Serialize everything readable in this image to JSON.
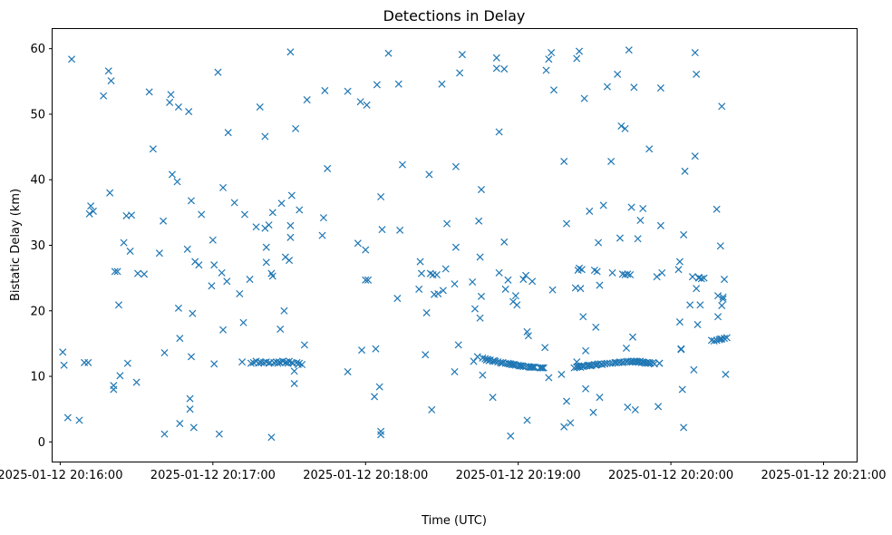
{
  "chart_data": {
    "type": "scatter",
    "title": "Detections in Delay",
    "xlabel": "Time (UTC)",
    "ylabel": "Bistatic Delay (km)",
    "marker": "x",
    "color": "#1f77b4",
    "grid": false,
    "x_unit": "seconds after 2025-01-12 20:16:00",
    "xlim": [
      -3,
      313
    ],
    "ylim": [
      -3,
      63
    ],
    "x_ticks": [
      {
        "value": 0,
        "label": "2025-01-12 20:16:00"
      },
      {
        "value": 60,
        "label": "2025-01-12 20:17:00"
      },
      {
        "value": 120,
        "label": "2025-01-12 20:18:00"
      },
      {
        "value": 180,
        "label": "2025-01-12 20:19:00"
      },
      {
        "value": 240,
        "label": "2025-01-12 20:20:00"
      },
      {
        "value": 300,
        "label": "2025-01-12 20:21:00"
      }
    ],
    "y_ticks": [
      {
        "value": 0,
        "label": "0"
      },
      {
        "value": 10,
        "label": "10"
      },
      {
        "value": 20,
        "label": "20"
      },
      {
        "value": 30,
        "label": "30"
      },
      {
        "value": 40,
        "label": "40"
      },
      {
        "value": 50,
        "label": "50"
      },
      {
        "value": 60,
        "label": "60"
      }
    ],
    "points": [
      [
        1,
        13.7
      ],
      [
        1.5,
        11.7
      ],
      [
        3,
        3.7
      ],
      [
        4.5,
        58.4
      ],
      [
        7.5,
        3.3
      ],
      [
        9.5,
        12.1
      ],
      [
        11,
        12.1
      ],
      [
        11.5,
        34.8
      ],
      [
        12,
        36
      ],
      [
        13,
        35.2
      ],
      [
        17,
        52.8
      ],
      [
        19,
        56.6
      ],
      [
        19.5,
        38
      ],
      [
        20,
        55.1
      ],
      [
        21,
        8.6
      ],
      [
        21,
        8
      ],
      [
        21.5,
        26
      ],
      [
        22.5,
        26
      ],
      [
        23,
        20.9
      ],
      [
        23.5,
        10.1
      ],
      [
        25,
        30.4
      ],
      [
        26,
        34.5
      ],
      [
        26.5,
        12
      ],
      [
        27.5,
        29.1
      ],
      [
        28,
        34.6
      ],
      [
        30,
        9.1
      ],
      [
        30.5,
        25.7
      ],
      [
        33,
        25.6
      ],
      [
        35,
        53.4
      ],
      [
        36.5,
        44.7
      ],
      [
        39,
        28.8
      ],
      [
        40.5,
        33.7
      ],
      [
        41,
        13.6
      ],
      [
        41,
        1.2
      ],
      [
        43,
        51.8
      ],
      [
        43.5,
        53
      ],
      [
        44,
        40.8
      ],
      [
        46,
        39.7
      ],
      [
        46.5,
        51.1
      ],
      [
        46.5,
        20.4
      ],
      [
        47,
        15.8
      ],
      [
        47,
        2.8
      ],
      [
        50,
        29.4
      ],
      [
        50.5,
        50.4
      ],
      [
        51,
        6.6
      ],
      [
        51,
        5
      ],
      [
        51.5,
        36.8
      ],
      [
        51.5,
        13
      ],
      [
        52,
        19.6
      ],
      [
        52.5,
        2.2
      ],
      [
        53,
        27.5
      ],
      [
        54.5,
        27
      ],
      [
        55.5,
        34.7
      ],
      [
        59.5,
        23.8
      ],
      [
        60,
        30.8
      ],
      [
        60.5,
        27
      ],
      [
        60.5,
        11.9
      ],
      [
        62,
        56.4
      ],
      [
        62.5,
        1.2
      ],
      [
        63.5,
        25.8
      ],
      [
        64,
        17.1
      ],
      [
        64,
        38.8
      ],
      [
        65.5,
        24.5
      ],
      [
        66,
        47.2
      ],
      [
        68.5,
        36.5
      ],
      [
        70.5,
        22.6
      ],
      [
        71.5,
        12.2
      ],
      [
        72,
        18.2
      ],
      [
        72.5,
        34.7
      ],
      [
        74.5,
        24.8
      ],
      [
        75,
        12
      ],
      [
        76,
        12.1
      ],
      [
        77,
        32.8
      ],
      [
        77,
        12.3
      ],
      [
        78,
        12
      ],
      [
        78.5,
        12.2
      ],
      [
        78.5,
        51.1
      ],
      [
        79,
        12.1
      ],
      [
        80,
        12.1
      ],
      [
        80.5,
        32.6
      ],
      [
        80.5,
        46.6
      ],
      [
        81,
        27.4
      ],
      [
        81,
        29.7
      ],
      [
        81,
        12.2
      ],
      [
        82,
        33.1
      ],
      [
        82,
        12
      ],
      [
        82.5,
        12.1
      ],
      [
        83,
        25.7
      ],
      [
        83,
        0.7
      ],
      [
        83.5,
        25.3
      ],
      [
        83.5,
        35
      ],
      [
        84,
        12.1
      ],
      [
        85,
        12.2
      ],
      [
        85.5,
        12
      ],
      [
        86,
        12.2
      ],
      [
        86.5,
        17.2
      ],
      [
        86.5,
        12.1
      ],
      [
        87,
        36.4
      ],
      [
        87.5,
        12.3
      ],
      [
        88,
        20
      ],
      [
        88.5,
        28.2
      ],
      [
        88.5,
        12.1
      ],
      [
        89,
        12.2
      ],
      [
        89.5,
        12
      ],
      [
        90,
        27.7
      ],
      [
        90,
        12.3
      ],
      [
        90.5,
        31.2
      ],
      [
        90.5,
        33
      ],
      [
        90.5,
        59.5
      ],
      [
        91,
        37.6
      ],
      [
        91,
        12.1
      ],
      [
        91.5,
        12
      ],
      [
        92,
        10.8
      ],
      [
        92,
        8.9
      ],
      [
        92.5,
        47.8
      ],
      [
        93,
        12.1
      ],
      [
        93.5,
        11.8
      ],
      [
        94,
        12
      ],
      [
        94,
        35.4
      ],
      [
        95,
        11.8
      ],
      [
        96,
        14.8
      ],
      [
        97,
        52.2
      ],
      [
        103,
        31.5
      ],
      [
        103.5,
        34.2
      ],
      [
        104,
        53.6
      ],
      [
        105,
        41.7
      ],
      [
        113,
        10.7
      ],
      [
        113,
        53.5
      ],
      [
        117,
        30.3
      ],
      [
        118,
        51.9
      ],
      [
        118.5,
        14
      ],
      [
        120,
        24.7
      ],
      [
        120,
        29.3
      ],
      [
        120.5,
        51.4
      ],
      [
        121,
        24.7
      ],
      [
        123.5,
        6.9
      ],
      [
        124,
        14.2
      ],
      [
        124.5,
        54.5
      ],
      [
        125.5,
        8.4
      ],
      [
        126,
        1.6
      ],
      [
        126,
        1.1
      ],
      [
        126,
        37.4
      ],
      [
        126.5,
        32.4
      ],
      [
        129,
        59.3
      ],
      [
        132.5,
        21.9
      ],
      [
        133,
        54.6
      ],
      [
        133.5,
        32.3
      ],
      [
        134.5,
        42.3
      ],
      [
        141,
        23.3
      ],
      [
        141.5,
        27.5
      ],
      [
        142,
        25.7
      ],
      [
        143.5,
        13.3
      ],
      [
        144,
        19.7
      ],
      [
        145,
        40.8
      ],
      [
        145.5,
        25.7
      ],
      [
        146,
        4.9
      ],
      [
        146.5,
        25.5
      ],
      [
        147,
        22.5
      ],
      [
        148,
        25.5
      ],
      [
        148.5,
        22.6
      ],
      [
        150,
        54.6
      ],
      [
        150.5,
        23.1
      ],
      [
        151.5,
        26.4
      ],
      [
        152,
        33.3
      ],
      [
        155,
        24.1
      ],
      [
        155,
        10.7
      ],
      [
        155.5,
        42
      ],
      [
        155.5,
        29.7
      ],
      [
        156.5,
        14.8
      ],
      [
        157,
        56.3
      ],
      [
        158,
        59.1
      ],
      [
        162,
        24.4
      ],
      [
        162.5,
        12.3
      ],
      [
        163,
        20.3
      ],
      [
        164,
        13
      ],
      [
        164.5,
        33.7
      ],
      [
        165,
        18.9
      ],
      [
        165,
        28.2
      ],
      [
        165.5,
        22.2
      ],
      [
        165.5,
        38.5
      ],
      [
        166,
        10.2
      ],
      [
        166,
        12.8
      ],
      [
        167,
        12.7
      ],
      [
        167.5,
        12.5
      ],
      [
        168,
        12.6
      ],
      [
        168.5,
        12.4
      ],
      [
        169,
        12.5
      ],
      [
        170,
        6.8
      ],
      [
        170,
        12.3
      ],
      [
        170.5,
        12.4
      ],
      [
        171,
        12.3
      ],
      [
        171.5,
        57
      ],
      [
        171.5,
        58.6
      ],
      [
        172,
        12.2
      ],
      [
        172.5,
        25.8
      ],
      [
        172.5,
        47.3
      ],
      [
        173,
        12.1
      ],
      [
        173.5,
        12
      ],
      [
        174,
        12.1
      ],
      [
        174.5,
        56.9
      ],
      [
        174.5,
        30.5
      ],
      [
        175,
        12
      ],
      [
        175,
        23.3
      ],
      [
        176,
        12
      ],
      [
        176,
        24.7
      ],
      [
        176.5,
        11.9
      ],
      [
        177,
        0.9
      ],
      [
        177,
        11.9
      ],
      [
        177.5,
        11.8
      ],
      [
        178,
        21.4
      ],
      [
        178,
        11.8
      ],
      [
        178.5,
        11.8
      ],
      [
        179,
        22.3
      ],
      [
        179,
        11.7
      ],
      [
        179.5,
        20.9
      ],
      [
        180,
        11.7
      ],
      [
        180.5,
        11.6
      ],
      [
        181,
        11.6
      ],
      [
        181.5,
        11.6
      ],
      [
        182,
        24.8
      ],
      [
        182,
        11.5
      ],
      [
        183,
        25.4
      ],
      [
        183,
        11.5
      ],
      [
        183.5,
        3.3
      ],
      [
        183.5,
        16.8
      ],
      [
        184,
        16.2
      ],
      [
        184,
        11.5
      ],
      [
        184.5,
        11.4
      ],
      [
        185,
        11.4
      ],
      [
        185.5,
        11.4
      ],
      [
        185.5,
        24.5
      ],
      [
        186,
        11.4
      ],
      [
        186.5,
        11.4
      ],
      [
        188.5,
        11.3
      ],
      [
        189,
        11.3
      ],
      [
        189.5,
        11.3
      ],
      [
        190,
        11.3
      ],
      [
        190.5,
        14.4
      ],
      [
        191,
        56.7
      ],
      [
        192,
        58.4
      ],
      [
        192,
        9.8
      ],
      [
        193,
        59.4
      ],
      [
        193.5,
        23.2
      ],
      [
        194,
        53.7
      ],
      [
        197,
        10.3
      ],
      [
        198,
        42.8
      ],
      [
        198,
        2.3
      ],
      [
        199,
        33.3
      ],
      [
        199,
        6.2
      ],
      [
        200.5,
        2.9
      ],
      [
        202,
        11.3
      ],
      [
        202.5,
        23.5
      ],
      [
        203,
        12.2
      ],
      [
        203,
        11.4
      ],
      [
        203,
        58.5
      ],
      [
        203.5,
        26.2
      ],
      [
        203.5,
        11.5
      ],
      [
        204,
        59.6
      ],
      [
        204,
        26.5
      ],
      [
        204,
        11.5
      ],
      [
        204.5,
        23.4
      ],
      [
        204.5,
        11.4
      ],
      [
        205,
        11.6
      ],
      [
        205,
        26.3
      ],
      [
        205.5,
        19.1
      ],
      [
        205.5,
        11.5
      ],
      [
        206,
        52.4
      ],
      [
        206,
        11.6
      ],
      [
        206.5,
        13.9
      ],
      [
        206.5,
        8.1
      ],
      [
        207,
        11.6
      ],
      [
        207.5,
        11.7
      ],
      [
        208,
        35.2
      ],
      [
        208,
        11.7
      ],
      [
        208.5,
        11.6
      ],
      [
        209,
        11.7
      ],
      [
        209.5,
        4.5
      ],
      [
        210,
        11.8
      ],
      [
        210,
        26.2
      ],
      [
        210.5,
        17.5
      ],
      [
        210.5,
        11.7
      ],
      [
        211,
        26
      ],
      [
        211,
        11.8
      ],
      [
        211.5,
        30.4
      ],
      [
        211.5,
        11.9
      ],
      [
        212,
        23.9
      ],
      [
        212,
        6.8
      ],
      [
        212.5,
        11.9
      ],
      [
        213,
        11.8
      ],
      [
        213.5,
        36.1
      ],
      [
        214,
        11.9
      ],
      [
        215,
        12
      ],
      [
        215,
        54.2
      ],
      [
        216,
        12
      ],
      [
        216.5,
        42.8
      ],
      [
        217,
        25.8
      ],
      [
        217,
        12
      ],
      [
        218,
        12.1
      ],
      [
        218.5,
        12.1
      ],
      [
        219,
        56.1
      ],
      [
        219.5,
        12.1
      ],
      [
        220,
        31.1
      ],
      [
        220,
        12.2
      ],
      [
        220.5,
        48.2
      ],
      [
        221,
        25.6
      ],
      [
        221,
        12.1
      ],
      [
        221.5,
        12.2
      ],
      [
        222,
        47.8
      ],
      [
        222,
        25.5
      ],
      [
        222.5,
        12.2
      ],
      [
        222.5,
        14.3
      ],
      [
        223,
        12.3
      ],
      [
        223,
        25.6
      ],
      [
        223,
        5.3
      ],
      [
        223.5,
        59.8
      ],
      [
        224,
        12.2
      ],
      [
        224,
        25.5
      ],
      [
        224.5,
        35.8
      ],
      [
        224.5,
        12.3
      ],
      [
        225,
        16
      ],
      [
        225,
        12.2
      ],
      [
        225.5,
        54.1
      ],
      [
        225.5,
        12.3
      ],
      [
        226,
        12.2
      ],
      [
        226,
        4.9
      ],
      [
        226.5,
        12.3
      ],
      [
        227,
        31
      ],
      [
        227,
        12.2
      ],
      [
        227.5,
        12.2
      ],
      [
        228,
        12.3
      ],
      [
        228,
        33.8
      ],
      [
        228.5,
        12.1
      ],
      [
        229,
        35.6
      ],
      [
        229,
        12.2
      ],
      [
        229.5,
        12.1
      ],
      [
        230,
        12
      ],
      [
        230.5,
        12.1
      ],
      [
        231,
        12
      ],
      [
        231.5,
        44.7
      ],
      [
        231.5,
        12.1
      ],
      [
        232,
        12
      ],
      [
        233,
        12.1
      ],
      [
        233.5,
        11.9
      ],
      [
        234.5,
        25.2
      ],
      [
        235,
        5.4
      ],
      [
        235.5,
        12
      ],
      [
        235.5,
        12
      ],
      [
        236,
        54
      ],
      [
        236,
        33
      ],
      [
        236.5,
        25.8
      ],
      [
        243,
        26.3
      ],
      [
        243.5,
        18.3
      ],
      [
        243.5,
        27.5
      ],
      [
        244,
        14.2
      ],
      [
        244,
        14.1
      ],
      [
        244.5,
        8
      ],
      [
        245,
        2.2
      ],
      [
        245,
        31.6
      ],
      [
        245.5,
        41.3
      ],
      [
        247.5,
        20.9
      ],
      [
        248.5,
        25.2
      ],
      [
        249,
        11
      ],
      [
        249.5,
        59.4
      ],
      [
        249.5,
        43.6
      ],
      [
        250,
        56.1
      ],
      [
        250,
        23.4
      ],
      [
        250.5,
        17.9
      ],
      [
        251,
        25.1
      ],
      [
        251,
        25
      ],
      [
        251.5,
        20.9
      ],
      [
        252,
        24.9
      ],
      [
        253,
        25
      ],
      [
        256,
        15.5
      ],
      [
        257,
        15.4
      ],
      [
        258,
        35.5
      ],
      [
        258,
        15.5
      ],
      [
        258.5,
        19.1
      ],
      [
        258.5,
        22.3
      ],
      [
        259,
        15.6
      ],
      [
        259.5,
        15.7
      ],
      [
        259.5,
        29.9
      ],
      [
        260,
        51.2
      ],
      [
        260,
        20.8
      ],
      [
        260,
        15.7
      ],
      [
        260.5,
        21.8
      ],
      [
        260.5,
        22.1
      ],
      [
        261,
        24.8
      ],
      [
        261,
        15.8
      ],
      [
        261.5,
        10.3
      ],
      [
        262,
        15.9
      ]
    ]
  }
}
